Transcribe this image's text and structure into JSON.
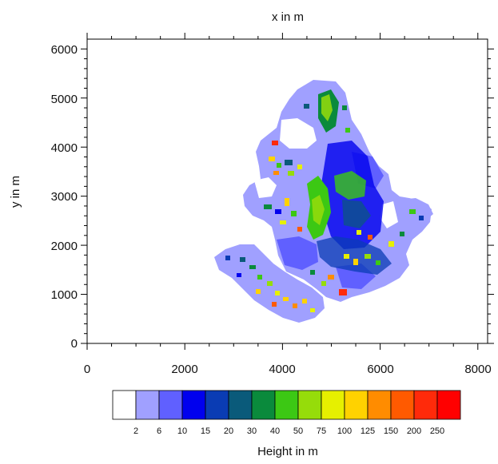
{
  "map": {
    "title": "x in m",
    "ylabel": "y in m",
    "x_ticks": [
      "0",
      "2000",
      "4000",
      "6000",
      "8000"
    ],
    "y_ticks": [
      "0",
      "1000",
      "2000",
      "3000",
      "4000",
      "5000",
      "6000"
    ],
    "xlim": [
      0,
      8200
    ],
    "ylim": [
      0,
      6200
    ]
  },
  "colorbar": {
    "label": "Height in m",
    "tick_labels": [
      "2",
      "6",
      "10",
      "15",
      "20",
      "30",
      "40",
      "50",
      "75",
      "100",
      "125",
      "150",
      "200",
      "250"
    ],
    "colors": [
      "#ffffff",
      "#a0a0ff",
      "#6060ff",
      "#0000ee",
      "#0a3cb4",
      "#0a5a7a",
      "#0a8a3c",
      "#3cc814",
      "#96dc0a",
      "#e6f000",
      "#ffd200",
      "#ff8c00",
      "#ff5a00",
      "#ff2a0a",
      "#ff0000"
    ]
  }
}
